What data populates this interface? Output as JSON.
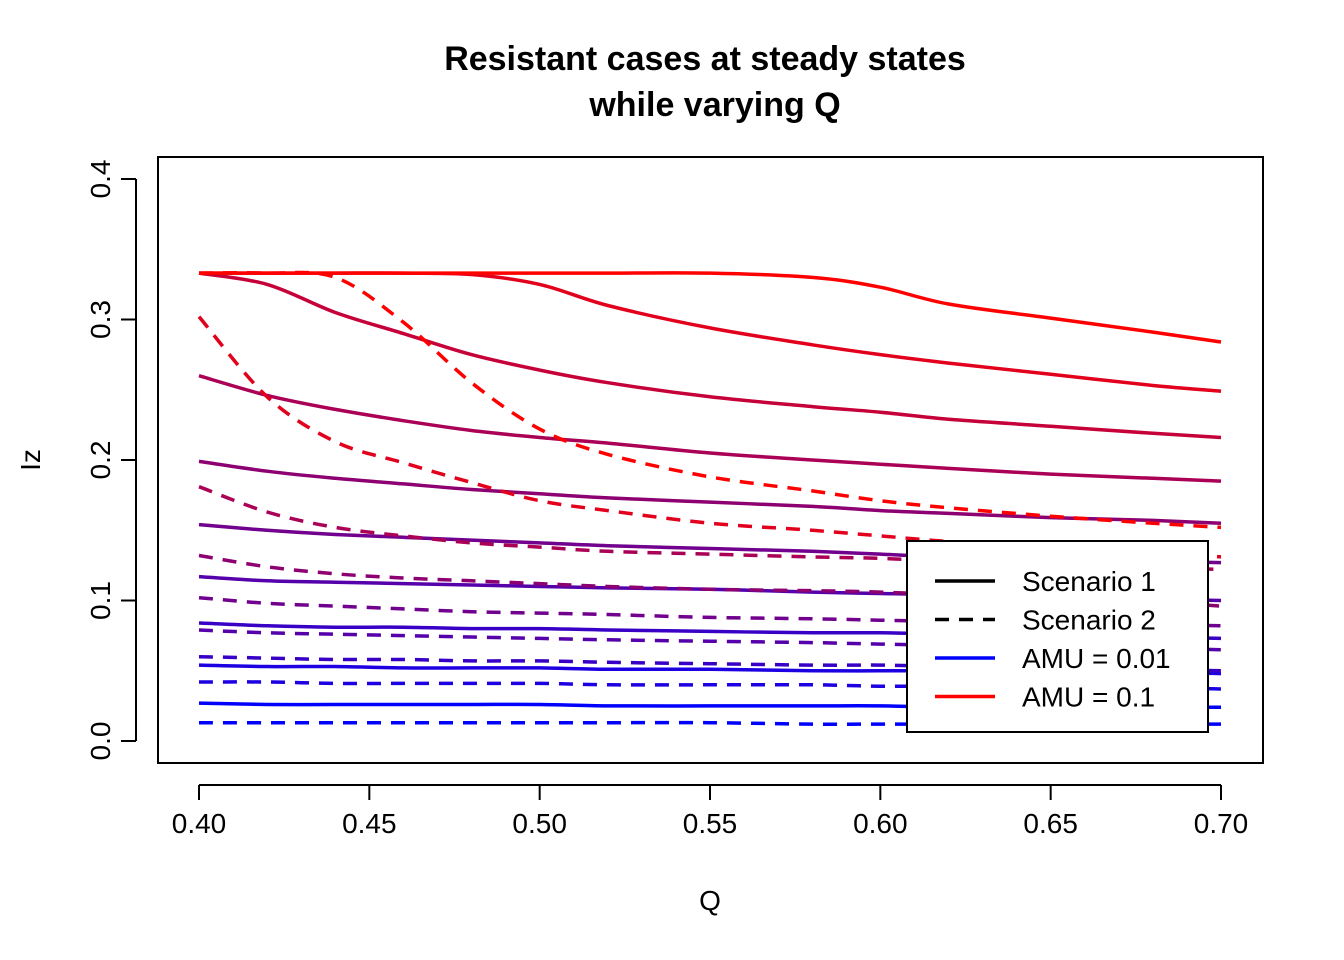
{
  "chart_data": {
    "type": "line",
    "title": "Resistant cases at steady states",
    "subtitle": "while varying Q",
    "xlabel": "Q",
    "ylabel": "Iz",
    "xlim": [
      0.4,
      0.7
    ],
    "ylim": [
      0.0,
      0.4
    ],
    "xticks": [
      "0.40",
      "0.45",
      "0.50",
      "0.55",
      "0.60",
      "0.65",
      "0.70"
    ],
    "yticks": [
      "0.0",
      "0.1",
      "0.2",
      "0.3",
      "0.4"
    ],
    "grid": false,
    "legend_position": "bottom-right",
    "legend": [
      {
        "label": "Scenario 1",
        "color": "#000000",
        "dash": "solid"
      },
      {
        "label": "Scenario 2",
        "color": "#000000",
        "dash": "dashed"
      },
      {
        "label": "AMU = 0.01",
        "color": "#0000FF",
        "dash": "solid"
      },
      {
        "label": "AMU = 0.1",
        "color": "#FF0000",
        "dash": "solid"
      }
    ],
    "x": [
      0.4,
      0.42,
      0.44,
      0.46,
      0.48,
      0.5,
      0.52,
      0.55,
      0.58,
      0.6,
      0.62,
      0.65,
      0.68,
      0.7
    ],
    "series": [
      {
        "scenario": 1,
        "color": "#0000FF",
        "values": [
          0.027,
          0.026,
          0.026,
          0.026,
          0.026,
          0.026,
          0.025,
          0.025,
          0.025,
          0.025,
          0.024,
          0.024,
          0.024,
          0.024
        ]
      },
      {
        "scenario": 1,
        "color": "#1C00E2",
        "values": [
          0.054,
          0.053,
          0.053,
          0.052,
          0.052,
          0.052,
          0.051,
          0.051,
          0.05,
          0.05,
          0.05,
          0.049,
          0.049,
          0.048
        ]
      },
      {
        "scenario": 1,
        "color": "#3800C6",
        "values": [
          0.084,
          0.082,
          0.081,
          0.081,
          0.08,
          0.08,
          0.079,
          0.078,
          0.077,
          0.077,
          0.076,
          0.075,
          0.074,
          0.073
        ]
      },
      {
        "scenario": 1,
        "color": "#5500AA",
        "values": [
          0.117,
          0.114,
          0.113,
          0.112,
          0.111,
          0.11,
          0.109,
          0.108,
          0.106,
          0.105,
          0.104,
          0.103,
          0.101,
          0.1
        ]
      },
      {
        "scenario": 1,
        "color": "#71008E",
        "values": [
          0.154,
          0.15,
          0.147,
          0.145,
          0.143,
          0.141,
          0.139,
          0.137,
          0.135,
          0.133,
          0.131,
          0.13,
          0.128,
          0.127
        ]
      },
      {
        "scenario": 1,
        "color": "#8D0071",
        "values": [
          0.199,
          0.192,
          0.187,
          0.183,
          0.179,
          0.176,
          0.173,
          0.17,
          0.167,
          0.164,
          0.162,
          0.159,
          0.157,
          0.155
        ]
      },
      {
        "scenario": 1,
        "color": "#AA0055",
        "values": [
          0.26,
          0.246,
          0.236,
          0.228,
          0.221,
          0.216,
          0.212,
          0.205,
          0.2,
          0.197,
          0.194,
          0.19,
          0.187,
          0.185
        ]
      },
      {
        "scenario": 1,
        "color": "#C60038",
        "values": [
          0.333,
          0.325,
          0.305,
          0.29,
          0.275,
          0.264,
          0.255,
          0.245,
          0.238,
          0.234,
          0.229,
          0.224,
          0.219,
          0.216
        ]
      },
      {
        "scenario": 1,
        "color": "#E2001C",
        "values": [
          0.333,
          0.333,
          0.333,
          0.333,
          0.332,
          0.325,
          0.31,
          0.294,
          0.282,
          0.275,
          0.269,
          0.261,
          0.253,
          0.249
        ]
      },
      {
        "scenario": 1,
        "color": "#FF0000",
        "values": [
          0.333,
          0.333,
          0.333,
          0.333,
          0.333,
          0.333,
          0.333,
          0.333,
          0.33,
          0.323,
          0.311,
          0.301,
          0.291,
          0.284
        ]
      },
      {
        "scenario": 2,
        "color": "#0000FF",
        "values": [
          0.013,
          0.013,
          0.013,
          0.013,
          0.013,
          0.013,
          0.013,
          0.013,
          0.012,
          0.012,
          0.012,
          0.012,
          0.012,
          0.012
        ]
      },
      {
        "scenario": 2,
        "color": "#1C00E2",
        "values": [
          0.042,
          0.042,
          0.041,
          0.041,
          0.041,
          0.041,
          0.04,
          0.04,
          0.04,
          0.039,
          0.039,
          0.038,
          0.038,
          0.037
        ]
      },
      {
        "scenario": 2,
        "color": "#3800C6",
        "values": [
          0.06,
          0.059,
          0.058,
          0.058,
          0.057,
          0.057,
          0.056,
          0.055,
          0.054,
          0.054,
          0.053,
          0.052,
          0.051,
          0.05
        ]
      },
      {
        "scenario": 2,
        "color": "#5500AA",
        "values": [
          0.079,
          0.077,
          0.076,
          0.075,
          0.074,
          0.073,
          0.072,
          0.071,
          0.07,
          0.069,
          0.068,
          0.067,
          0.066,
          0.065
        ]
      },
      {
        "scenario": 2,
        "color": "#71008E",
        "values": [
          0.102,
          0.098,
          0.096,
          0.094,
          0.092,
          0.091,
          0.09,
          0.088,
          0.087,
          0.086,
          0.085,
          0.084,
          0.083,
          0.082
        ]
      },
      {
        "scenario": 2,
        "color": "#8D0071",
        "values": [
          0.132,
          0.124,
          0.119,
          0.116,
          0.114,
          0.112,
          0.11,
          0.108,
          0.107,
          0.106,
          0.104,
          0.102,
          0.099,
          0.096
        ]
      },
      {
        "scenario": 2,
        "color": "#AA0055",
        "values": [
          0.181,
          0.163,
          0.152,
          0.146,
          0.141,
          0.138,
          0.135,
          0.133,
          0.131,
          0.13,
          0.128,
          0.126,
          0.124,
          0.122
        ]
      },
      {
        "scenario": 2,
        "color": "#E2001C",
        "values": [
          0.302,
          0.245,
          0.213,
          0.198,
          0.184,
          0.171,
          0.164,
          0.155,
          0.15,
          0.146,
          0.142,
          0.138,
          0.134,
          0.131
        ]
      },
      {
        "scenario": 2,
        "color": "#FF0000",
        "values": [
          0.333,
          0.333,
          0.33,
          0.298,
          0.255,
          0.222,
          0.204,
          0.188,
          0.178,
          0.171,
          0.166,
          0.16,
          0.155,
          0.152
        ]
      }
    ]
  }
}
